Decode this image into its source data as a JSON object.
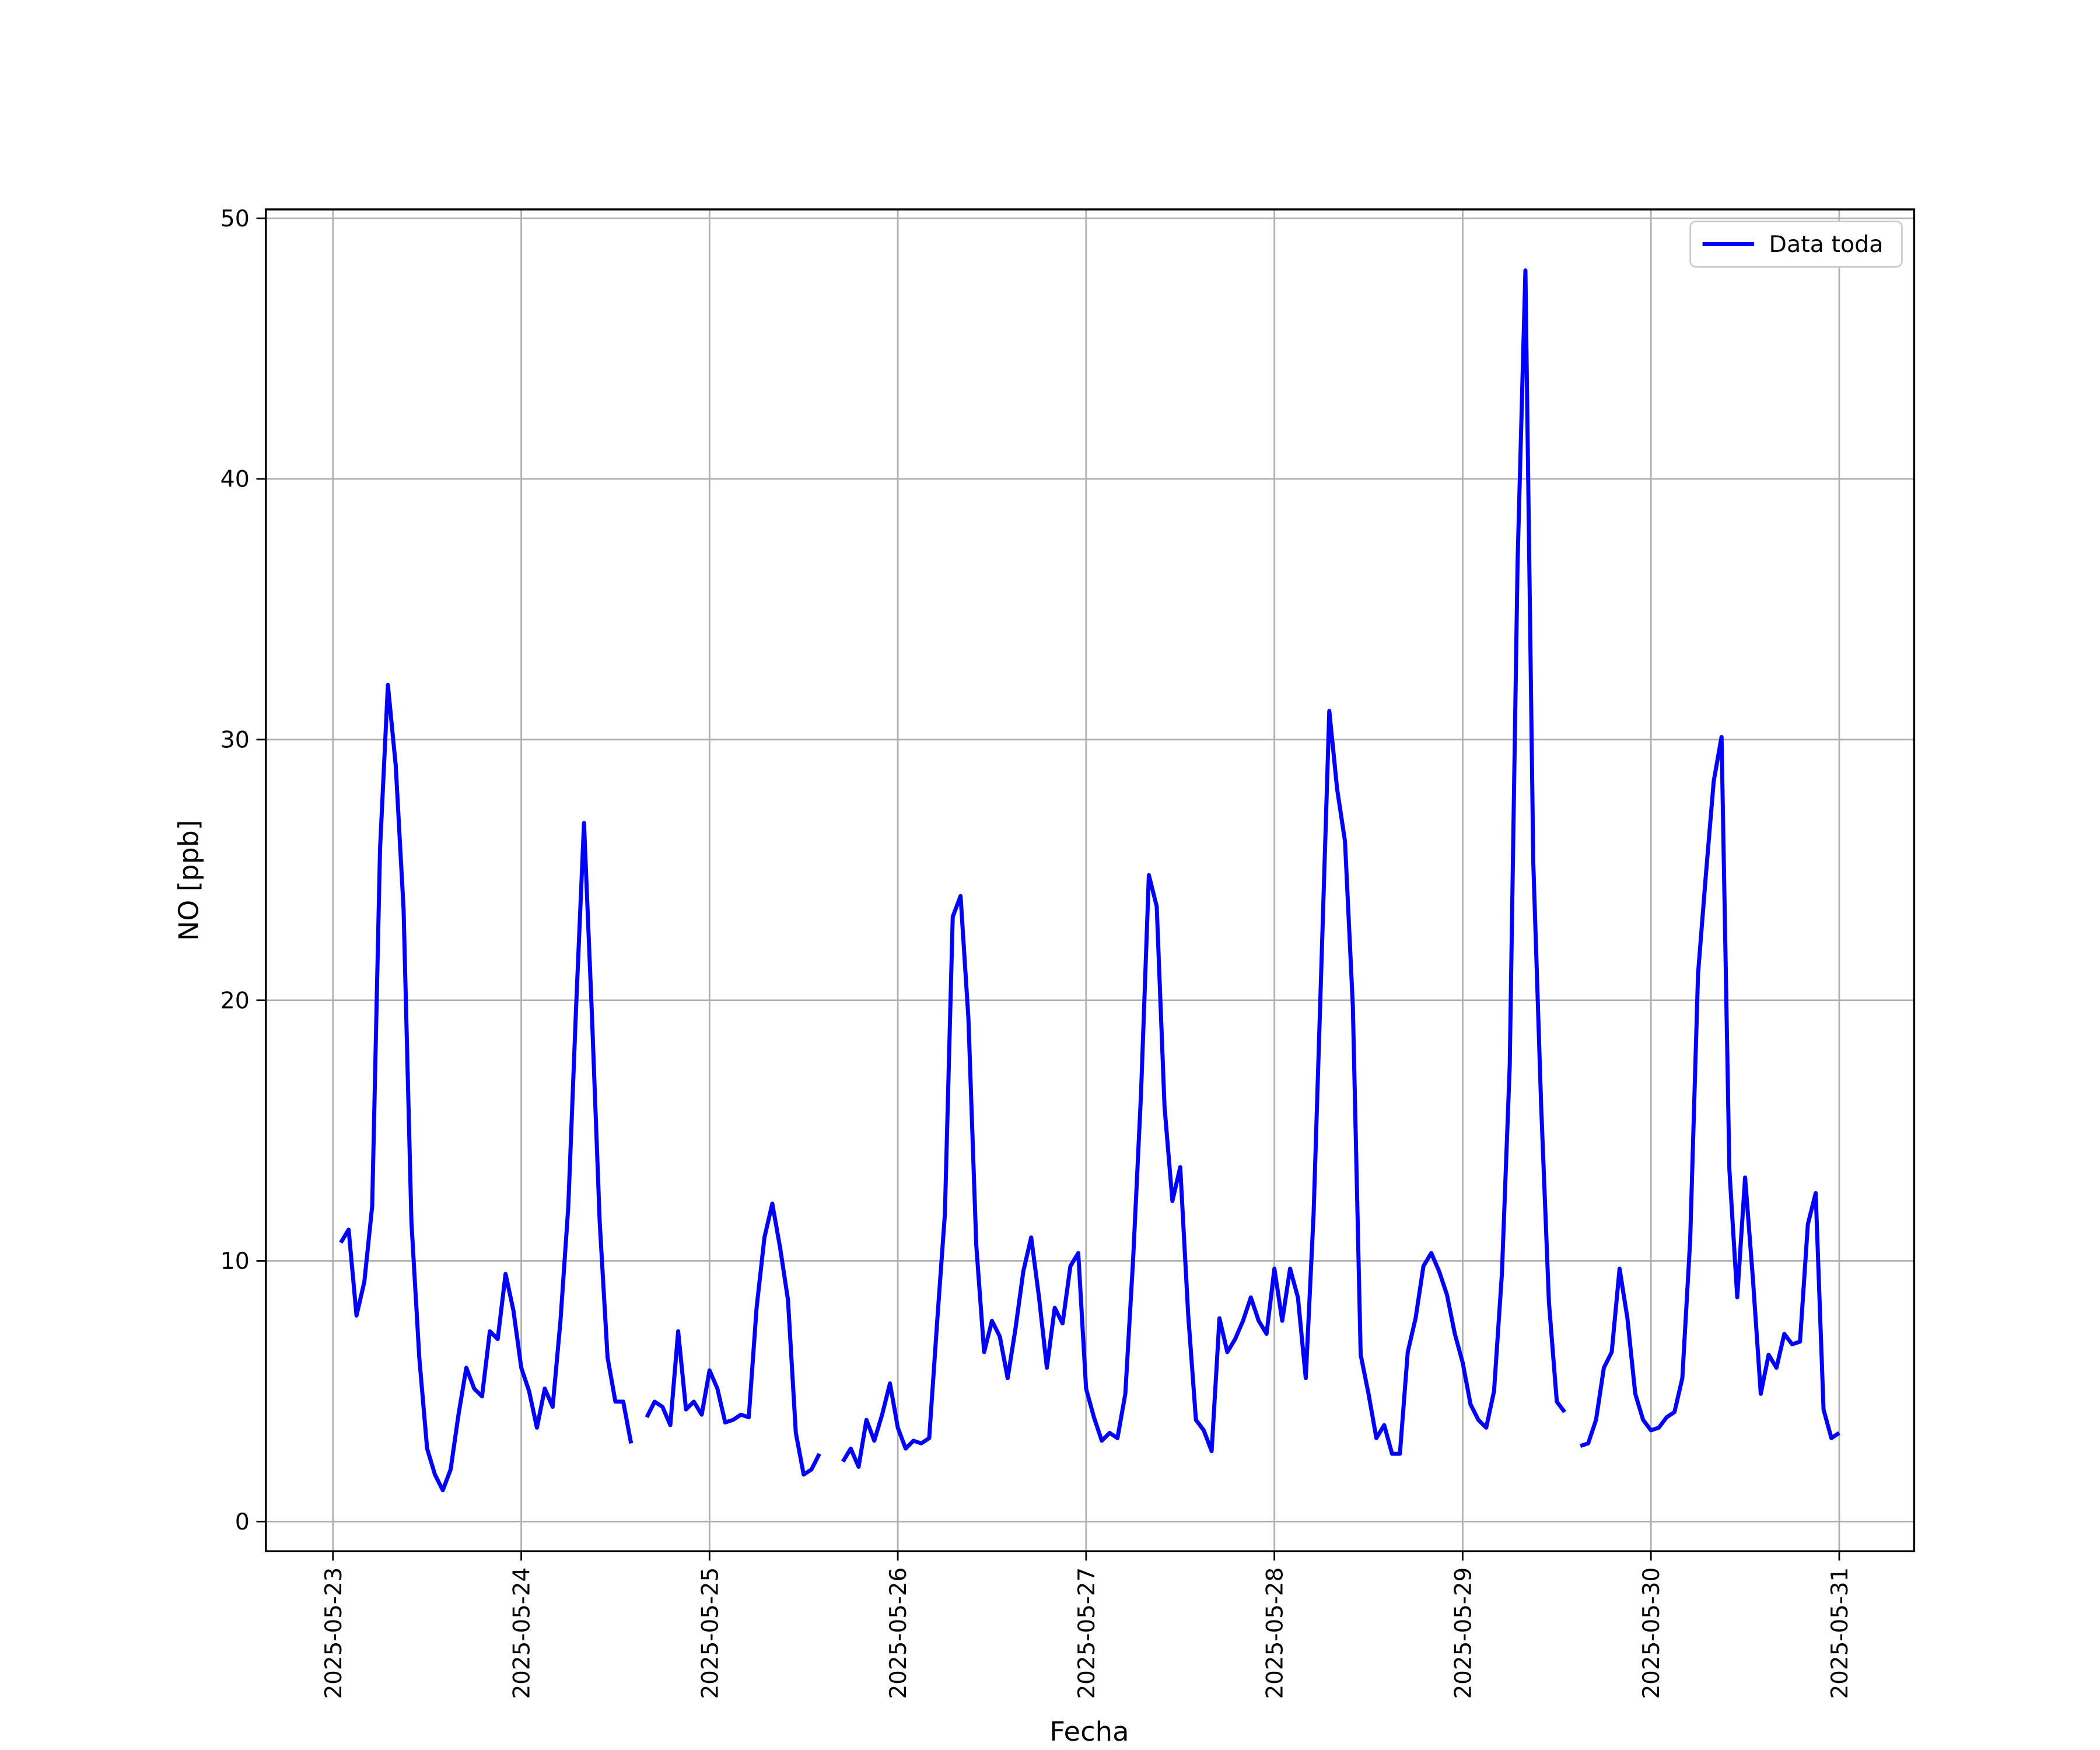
{
  "chart_data": {
    "type": "line",
    "xlabel": "Fecha",
    "ylabel": "NO [ppb]",
    "x": [
      "2025-05-23 01:00",
      "2025-05-23 02:00",
      "2025-05-23 03:00",
      "2025-05-23 04:00",
      "2025-05-23 05:00",
      "2025-05-23 06:00",
      "2025-05-23 07:00",
      "2025-05-23 08:00",
      "2025-05-23 09:00",
      "2025-05-23 10:00",
      "2025-05-23 11:00",
      "2025-05-23 12:00",
      "2025-05-23 13:00",
      "2025-05-23 14:00",
      "2025-05-23 15:00",
      "2025-05-23 16:00",
      "2025-05-23 17:00",
      "2025-05-23 18:00",
      "2025-05-23 19:00",
      "2025-05-23 20:00",
      "2025-05-23 21:00",
      "2025-05-23 22:00",
      "2025-05-23 23:00",
      "2025-05-24 00:00",
      "2025-05-24 01:00",
      "2025-05-24 02:00",
      "2025-05-24 03:00",
      "2025-05-24 04:00",
      "2025-05-24 05:00",
      "2025-05-24 06:00",
      "2025-05-24 07:00",
      "2025-05-24 08:00",
      "2025-05-24 09:00",
      "2025-05-24 10:00",
      "2025-05-24 11:00",
      "2025-05-24 12:00",
      "2025-05-24 13:00",
      "2025-05-24 14:00",
      "2025-05-24 15:00",
      "2025-05-24 16:00",
      "2025-05-24 17:00",
      "2025-05-24 18:00",
      "2025-05-24 19:00",
      "2025-05-24 20:00",
      "2025-05-24 21:00",
      "2025-05-24 22:00",
      "2025-05-24 23:00",
      "2025-05-25 00:00",
      "2025-05-25 01:00",
      "2025-05-25 02:00",
      "2025-05-25 03:00",
      "2025-05-25 04:00",
      "2025-05-25 05:00",
      "2025-05-25 06:00",
      "2025-05-25 07:00",
      "2025-05-25 08:00",
      "2025-05-25 09:00",
      "2025-05-25 10:00",
      "2025-05-25 11:00",
      "2025-05-25 12:00",
      "2025-05-25 13:00",
      "2025-05-25 14:00",
      "2025-05-25 15:00",
      "2025-05-25 16:00",
      "2025-05-25 17:00",
      "2025-05-25 18:00",
      "2025-05-25 19:00",
      "2025-05-25 20:00",
      "2025-05-25 21:00",
      "2025-05-25 22:00",
      "2025-05-25 23:00",
      "2025-05-26 00:00",
      "2025-05-26 01:00",
      "2025-05-26 02:00",
      "2025-05-26 03:00",
      "2025-05-26 04:00",
      "2025-05-26 05:00",
      "2025-05-26 06:00",
      "2025-05-26 07:00",
      "2025-05-26 08:00",
      "2025-05-26 09:00",
      "2025-05-26 10:00",
      "2025-05-26 11:00",
      "2025-05-26 12:00",
      "2025-05-26 13:00",
      "2025-05-26 14:00",
      "2025-05-26 15:00",
      "2025-05-26 16:00",
      "2025-05-26 17:00",
      "2025-05-26 18:00",
      "2025-05-26 19:00",
      "2025-05-26 20:00",
      "2025-05-26 21:00",
      "2025-05-26 22:00",
      "2025-05-26 23:00",
      "2025-05-27 00:00",
      "2025-05-27 01:00",
      "2025-05-27 02:00",
      "2025-05-27 03:00",
      "2025-05-27 04:00",
      "2025-05-27 05:00",
      "2025-05-27 06:00",
      "2025-05-27 07:00",
      "2025-05-27 08:00",
      "2025-05-27 09:00",
      "2025-05-27 10:00",
      "2025-05-27 11:00",
      "2025-05-27 12:00",
      "2025-05-27 13:00",
      "2025-05-27 14:00",
      "2025-05-27 15:00",
      "2025-05-27 16:00",
      "2025-05-27 17:00",
      "2025-05-27 18:00",
      "2025-05-27 19:00",
      "2025-05-27 20:00",
      "2025-05-27 21:00",
      "2025-05-27 22:00",
      "2025-05-27 23:00",
      "2025-05-28 00:00",
      "2025-05-28 01:00",
      "2025-05-28 02:00",
      "2025-05-28 03:00",
      "2025-05-28 04:00",
      "2025-05-28 05:00",
      "2025-05-28 06:00",
      "2025-05-28 07:00",
      "2025-05-28 08:00",
      "2025-05-28 09:00",
      "2025-05-28 10:00",
      "2025-05-28 11:00",
      "2025-05-28 12:00",
      "2025-05-28 13:00",
      "2025-05-28 14:00",
      "2025-05-28 15:00",
      "2025-05-28 16:00",
      "2025-05-28 17:00",
      "2025-05-28 18:00",
      "2025-05-28 19:00",
      "2025-05-28 20:00",
      "2025-05-28 21:00",
      "2025-05-28 22:00",
      "2025-05-28 23:00",
      "2025-05-29 00:00",
      "2025-05-29 01:00",
      "2025-05-29 02:00",
      "2025-05-29 03:00",
      "2025-05-29 04:00",
      "2025-05-29 05:00",
      "2025-05-29 06:00",
      "2025-05-29 07:00",
      "2025-05-29 08:00",
      "2025-05-29 09:00",
      "2025-05-29 10:00",
      "2025-05-29 11:00",
      "2025-05-29 12:00",
      "2025-05-29 13:00",
      "2025-05-29 14:00",
      "2025-05-29 15:00",
      "2025-05-29 16:00",
      "2025-05-29 17:00",
      "2025-05-29 18:00",
      "2025-05-29 19:00",
      "2025-05-29 20:00",
      "2025-05-29 21:00",
      "2025-05-29 22:00",
      "2025-05-29 23:00",
      "2025-05-30 00:00",
      "2025-05-30 01:00",
      "2025-05-30 02:00",
      "2025-05-30 03:00",
      "2025-05-30 04:00",
      "2025-05-30 05:00",
      "2025-05-30 06:00",
      "2025-05-30 07:00",
      "2025-05-30 08:00",
      "2025-05-30 09:00",
      "2025-05-30 10:00",
      "2025-05-30 11:00",
      "2025-05-30 12:00",
      "2025-05-30 13:00",
      "2025-05-30 14:00",
      "2025-05-30 15:00",
      "2025-05-30 16:00",
      "2025-05-30 17:00",
      "2025-05-30 18:00",
      "2025-05-30 19:00",
      "2025-05-30 20:00",
      "2025-05-30 21:00",
      "2025-05-30 22:00",
      "2025-05-30 23:00",
      "2025-05-31 00:00"
    ],
    "series": [
      {
        "name": "Data toda",
        "color": "#0000ff",
        "values": [
          10.7,
          11.2,
          7.9,
          9.2,
          12.1,
          25.8,
          32.1,
          29.0,
          23.5,
          11.5,
          6.3,
          2.8,
          1.8,
          1.2,
          2.0,
          4.1,
          5.9,
          5.1,
          4.8,
          7.3,
          7.0,
          9.5,
          8.1,
          5.9,
          5.0,
          3.6,
          5.1,
          4.4,
          7.7,
          12.1,
          19.8,
          26.8,
          19.5,
          11.5,
          6.3,
          4.6,
          4.6,
          3.0,
          null,
          4.0,
          4.6,
          4.4,
          3.7,
          7.3,
          4.3,
          4.6,
          4.1,
          5.8,
          5.1,
          3.8,
          3.9,
          4.1,
          4.0,
          8.2,
          10.9,
          12.2,
          10.5,
          8.5,
          3.4,
          1.8,
          2.0,
          2.6,
          null,
          null,
          2.3,
          2.8,
          2.1,
          3.9,
          3.1,
          4.1,
          5.3,
          3.6,
          2.8,
          3.1,
          3.0,
          3.2,
          7.6,
          11.8,
          23.2,
          24.0,
          19.3,
          10.6,
          6.5,
          7.7,
          7.1,
          5.5,
          7.4,
          9.6,
          10.9,
          8.6,
          5.9,
          8.2,
          7.6,
          9.8,
          10.3,
          5.1,
          4.0,
          3.1,
          3.4,
          3.2,
          4.9,
          10.1,
          16.4,
          24.8,
          23.6,
          15.9,
          12.3,
          13.6,
          8.0,
          3.9,
          3.5,
          2.7,
          7.8,
          6.5,
          7.0,
          7.7,
          8.6,
          7.7,
          7.2,
          9.7,
          7.7,
          9.7,
          8.6,
          5.5,
          11.8,
          21.4,
          31.1,
          28.1,
          26.1,
          19.8,
          6.4,
          4.9,
          3.2,
          3.7,
          2.6,
          2.6,
          6.5,
          7.8,
          9.8,
          10.3,
          9.6,
          8.7,
          7.2,
          6.1,
          4.5,
          3.9,
          3.6,
          5.0,
          9.5,
          17.5,
          36.8,
          48.0,
          25.3,
          16.0,
          8.4,
          4.6,
          4.2,
          null,
          2.9,
          3.0,
          3.9,
          5.9,
          6.5,
          9.7,
          7.8,
          4.9,
          3.9,
          3.5,
          3.6,
          4.0,
          4.2,
          5.5,
          10.8,
          21.0,
          24.8,
          28.4,
          30.1,
          13.5,
          8.6,
          13.2,
          9.3,
          4.9,
          6.4,
          5.9,
          7.2,
          6.8,
          6.9,
          11.4,
          12.6,
          4.3,
          3.2,
          3.4
        ]
      }
    ],
    "xticks": [
      "2025-05-23",
      "2025-05-24",
      "2025-05-25",
      "2025-05-26",
      "2025-05-27",
      "2025-05-28",
      "2025-05-29",
      "2025-05-30",
      "2025-05-31"
    ],
    "ylim": [
      -1.14,
      50.34
    ],
    "yticks": [
      0,
      10,
      20,
      30,
      40,
      50
    ],
    "grid": true,
    "legend": "upper right"
  }
}
